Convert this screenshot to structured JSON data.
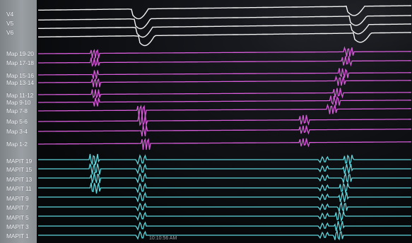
{
  "channels": {
    "surface": [
      "V4",
      "V5",
      "V6"
    ],
    "map": [
      "Map 19-20",
      "Map 17-18",
      "Map 15-16",
      "Map 13-14",
      "Map 11-12",
      "Map 9-10",
      "Map 7-8",
      "Map 5-6",
      "Map 3-4",
      "Map 1-2"
    ],
    "mapit": [
      "MAPIT 19",
      "MAPIT 15",
      "MAPIT 13",
      "MAPIT 11",
      "MAPIT 9",
      "MAPIT 7",
      "MAPIT 5",
      "MAPIT 3",
      "MAPIT 1"
    ]
  },
  "timestamp": "10:10:56 AM",
  "colors": {
    "surface": "#f2f2f2",
    "map": "#d55bd8",
    "mapit": "#5fd6dc",
    "label_panel": "#8e9398"
  }
}
